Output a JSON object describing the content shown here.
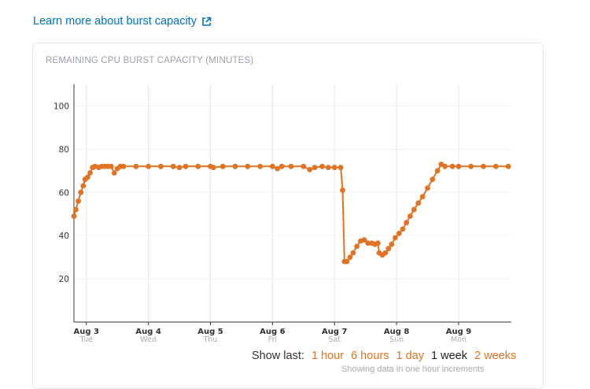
{
  "header": {
    "learn_more_label": "Learn more about burst capacity",
    "icon": "external-link-icon"
  },
  "card": {
    "title": "REMAINING CPU BURST CAPACITY (MINUTES)"
  },
  "colors": {
    "series": "#e07426",
    "link": "#0073bb",
    "grid": "#e6e6e6"
  },
  "time_range": {
    "label": "Show last:",
    "options": [
      {
        "label": "1 hour",
        "selected": false
      },
      {
        "label": "6 hours",
        "selected": false
      },
      {
        "label": "1 day",
        "selected": false
      },
      {
        "label": "1 week",
        "selected": true
      },
      {
        "label": "2 weeks",
        "selected": false
      }
    ],
    "note": "Showing data in one hour increments"
  },
  "chart_data": {
    "type": "line",
    "title": "REMAINING CPU BURST CAPACITY (MINUTES)",
    "xlabel": "",
    "ylabel": "",
    "ylim": [
      0,
      110
    ],
    "xlim": [
      -0.2,
      6.85
    ],
    "yticks": [
      20,
      40,
      60,
      80,
      100
    ],
    "grid": true,
    "x_ticks": [
      {
        "x": 0,
        "label": "Aug 3",
        "sublabel": "Tue"
      },
      {
        "x": 1,
        "label": "Aug 4",
        "sublabel": "Wed"
      },
      {
        "x": 2,
        "label": "Aug 5",
        "sublabel": "Thu"
      },
      {
        "x": 3,
        "label": "Aug 6",
        "sublabel": "Fri"
      },
      {
        "x": 4,
        "label": "Aug 7",
        "sublabel": "Sat"
      },
      {
        "x": 5,
        "label": "Aug 8",
        "sublabel": "Sun"
      },
      {
        "x": 6,
        "label": "Aug 9",
        "sublabel": "Mon"
      }
    ],
    "series": [
      {
        "points": [
          [
            -0.2,
            49
          ],
          [
            -0.17,
            52
          ],
          [
            -0.13,
            56
          ],
          [
            -0.09,
            60
          ],
          [
            -0.05,
            63
          ],
          [
            -0.02,
            66
          ],
          [
            0.02,
            67
          ],
          [
            0.06,
            69
          ],
          [
            0.1,
            71.5
          ],
          [
            0.14,
            72
          ],
          [
            0.2,
            71.5
          ],
          [
            0.25,
            72
          ],
          [
            0.3,
            72
          ],
          [
            0.35,
            72
          ],
          [
            0.4,
            72
          ],
          [
            0.45,
            69
          ],
          [
            0.5,
            71
          ],
          [
            0.55,
            72
          ],
          [
            0.6,
            72
          ],
          [
            0.8,
            72
          ],
          [
            1.0,
            72
          ],
          [
            1.2,
            72
          ],
          [
            1.4,
            72
          ],
          [
            1.5,
            71.5
          ],
          [
            1.6,
            72
          ],
          [
            1.8,
            72
          ],
          [
            2.0,
            72
          ],
          [
            2.05,
            71.5
          ],
          [
            2.2,
            72
          ],
          [
            2.4,
            72
          ],
          [
            2.6,
            72
          ],
          [
            2.8,
            72
          ],
          [
            3.0,
            72
          ],
          [
            3.08,
            71
          ],
          [
            3.15,
            72
          ],
          [
            3.3,
            72
          ],
          [
            3.5,
            72
          ],
          [
            3.6,
            70.5
          ],
          [
            3.68,
            71.5
          ],
          [
            3.8,
            72
          ],
          [
            3.9,
            71.5
          ],
          [
            4.0,
            71.5
          ],
          [
            4.1,
            71.5
          ],
          [
            4.13,
            61
          ],
          [
            4.16,
            28
          ],
          [
            4.2,
            28
          ],
          [
            4.25,
            30
          ],
          [
            4.3,
            32
          ],
          [
            4.36,
            35
          ],
          [
            4.42,
            37.5
          ],
          [
            4.48,
            38
          ],
          [
            4.54,
            36.5
          ],
          [
            4.6,
            36.5
          ],
          [
            4.65,
            36
          ],
          [
            4.7,
            36.5
          ],
          [
            4.72,
            32
          ],
          [
            4.77,
            31
          ],
          [
            4.82,
            32
          ],
          [
            4.87,
            34
          ],
          [
            4.92,
            36
          ],
          [
            4.98,
            39
          ],
          [
            5.04,
            41
          ],
          [
            5.1,
            43
          ],
          [
            5.16,
            46
          ],
          [
            5.22,
            49
          ],
          [
            5.28,
            52
          ],
          [
            5.35,
            55
          ],
          [
            5.42,
            58
          ],
          [
            5.5,
            62
          ],
          [
            5.58,
            66
          ],
          [
            5.66,
            70
          ],
          [
            5.72,
            73
          ],
          [
            5.78,
            72
          ],
          [
            5.9,
            72
          ],
          [
            6.0,
            72
          ],
          [
            6.2,
            72
          ],
          [
            6.4,
            72
          ],
          [
            6.6,
            72
          ],
          [
            6.8,
            72
          ]
        ]
      }
    ]
  }
}
